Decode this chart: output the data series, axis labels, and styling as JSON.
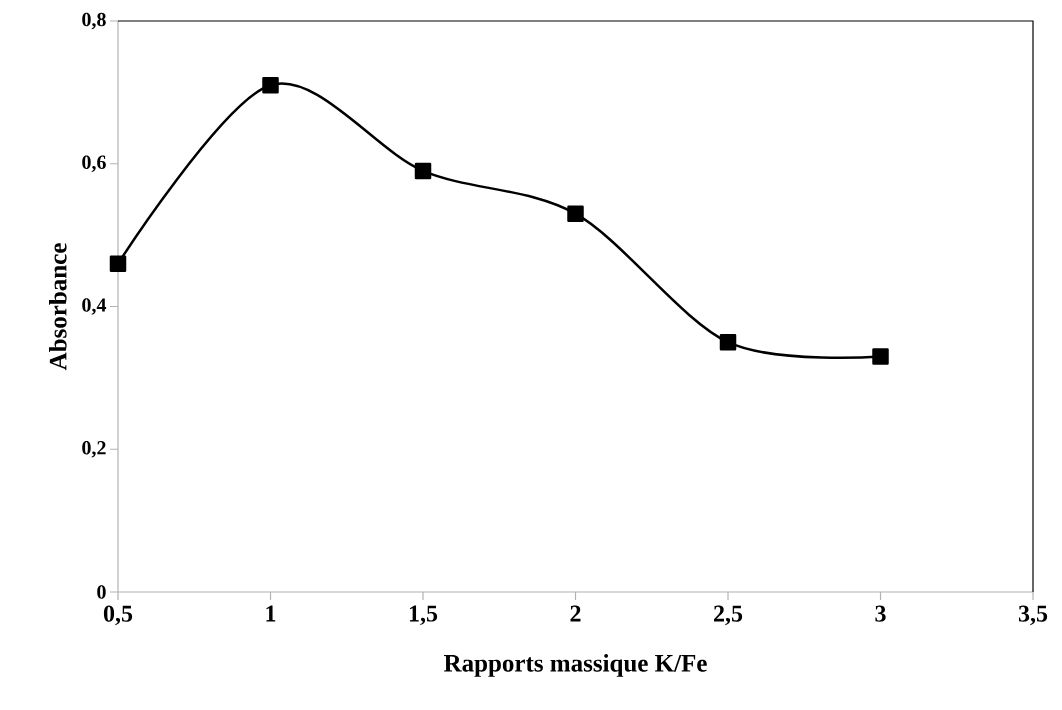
{
  "chart_data": {
    "type": "line",
    "xlabel": "Rapports massique K/Fe",
    "ylabel": "Absorbance",
    "x": [
      0.5,
      1,
      1.5,
      2,
      2.5,
      3
    ],
    "values": [
      0.46,
      0.71,
      0.59,
      0.53,
      0.35,
      0.33
    ],
    "color": "#000000",
    "marker": "square",
    "line_style": "solid",
    "xlim": [
      0.5,
      3.5
    ],
    "xticks": [
      {
        "value": 0.5,
        "label": "0,5"
      },
      1,
      {
        "value": 1.5,
        "label": "1,5"
      },
      2,
      {
        "value": 2.5,
        "label": "2,5"
      },
      3,
      {
        "value": 3.5,
        "label": "3,5"
      }
    ],
    "ylim": [
      0,
      0.8
    ],
    "yticks": [
      0,
      {
        "value": 0.2,
        "label": "0,2"
      },
      {
        "value": 0.4,
        "label": "0,4"
      },
      {
        "value": 0.6,
        "label": "0,6"
      },
      {
        "value": 0.8,
        "label": "0,8"
      }
    ]
  }
}
